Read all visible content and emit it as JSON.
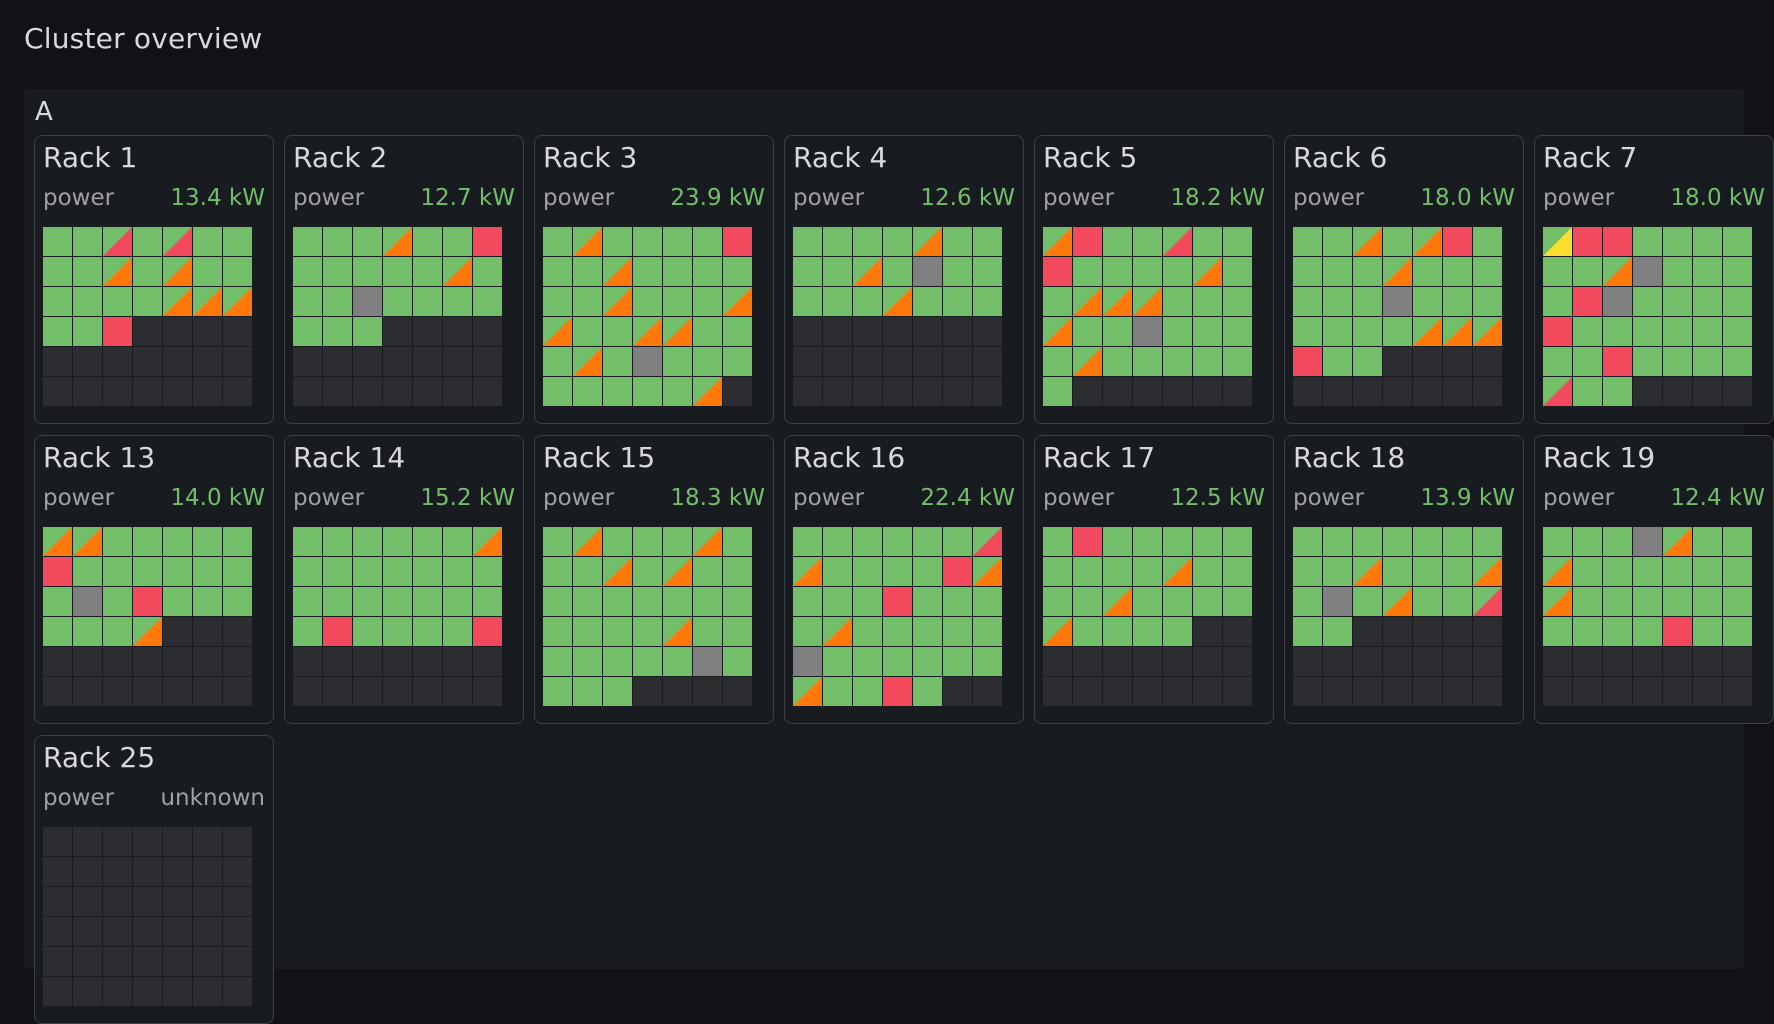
{
  "page_title": "Cluster overview",
  "group": {
    "label": "A",
    "colors": {
      "ok": "#73bf69",
      "warn": "#ff780a",
      "crit": "#f2495c",
      "minor": "#fade2a",
      "unknown": "#808080",
      "empty": "#2c2d31"
    },
    "racks": [
      {
        "name": "Rack 1",
        "metric_label": "power",
        "metric_value": "13.4 kW",
        "slots": [
          "g",
          "g",
          "gc",
          "g",
          "gc",
          "g",
          "g",
          "g",
          "g",
          "go",
          "g",
          "go",
          "g",
          "g",
          "g",
          "g",
          "g",
          "g",
          "go",
          "go",
          "go",
          "g",
          "g",
          "r",
          "e",
          "e",
          "e",
          "e",
          "e",
          "e",
          "e",
          "e",
          "e",
          "e",
          "e",
          "e",
          "e",
          "e",
          "e",
          "e",
          "e",
          "e"
        ]
      },
      {
        "name": "Rack 2",
        "metric_label": "power",
        "metric_value": "12.7 kW",
        "slots": [
          "g",
          "g",
          "g",
          "go",
          "g",
          "g",
          "r",
          "g",
          "g",
          "g",
          "g",
          "g",
          "go",
          "g",
          "g",
          "g",
          "x",
          "g",
          "g",
          "g",
          "g",
          "g",
          "g",
          "g",
          "e",
          "e",
          "e",
          "e",
          "e",
          "e",
          "e",
          "e",
          "e",
          "e",
          "e",
          "e",
          "e",
          "e",
          "e",
          "e",
          "e",
          "e"
        ]
      },
      {
        "name": "Rack 3",
        "metric_label": "power",
        "metric_value": "23.9 kW",
        "slots": [
          "g",
          "go",
          "g",
          "g",
          "g",
          "g",
          "r",
          "g",
          "g",
          "go",
          "g",
          "g",
          "g",
          "g",
          "g",
          "g",
          "go",
          "g",
          "g",
          "g",
          "go",
          "go",
          "g",
          "g",
          "go",
          "go",
          "g",
          "g",
          "g",
          "go",
          "g",
          "x",
          "g",
          "g",
          "g",
          "g",
          "g",
          "g",
          "g",
          "g",
          "go",
          "e"
        ]
      },
      {
        "name": "Rack 4",
        "metric_label": "power",
        "metric_value": "12.6 kW",
        "slots": [
          "g",
          "g",
          "g",
          "g",
          "go",
          "g",
          "g",
          "g",
          "g",
          "go",
          "g",
          "x",
          "g",
          "g",
          "g",
          "g",
          "g",
          "go",
          "g",
          "g",
          "g",
          "e",
          "e",
          "e",
          "e",
          "e",
          "e",
          "e",
          "e",
          "e",
          "e",
          "e",
          "e",
          "e",
          "e",
          "e",
          "e",
          "e",
          "e",
          "e",
          "e",
          "e"
        ]
      },
      {
        "name": "Rack 5",
        "metric_label": "power",
        "metric_value": "18.2 kW",
        "slots": [
          "go",
          "r",
          "g",
          "g",
          "gc",
          "g",
          "g",
          "r",
          "g",
          "g",
          "g",
          "g",
          "go",
          "g",
          "g",
          "go",
          "go",
          "go",
          "g",
          "g",
          "g",
          "go",
          "g",
          "g",
          "x",
          "g",
          "g",
          "g",
          "g",
          "go",
          "g",
          "g",
          "g",
          "g",
          "g",
          "g",
          "e",
          "e",
          "e",
          "e",
          "e",
          "e"
        ]
      },
      {
        "name": "Rack 6",
        "metric_label": "power",
        "metric_value": "18.0 kW",
        "slots": [
          "g",
          "g",
          "go",
          "g",
          "go",
          "r",
          "g",
          "g",
          "g",
          "g",
          "go",
          "g",
          "g",
          "g",
          "g",
          "g",
          "g",
          "x",
          "g",
          "g",
          "g",
          "g",
          "g",
          "g",
          "g",
          "go",
          "go",
          "go",
          "r",
          "g",
          "g",
          "e",
          "e",
          "e",
          "e",
          "e",
          "e",
          "e",
          "e",
          "e",
          "e",
          "e"
        ]
      },
      {
        "name": "Rack 7",
        "metric_label": "power",
        "metric_value": "18.0 kW",
        "slots": [
          "gy",
          "r",
          "r",
          "g",
          "g",
          "g",
          "g",
          "g",
          "g",
          "go",
          "x",
          "g",
          "g",
          "g",
          "g",
          "r",
          "x",
          "g",
          "g",
          "g",
          "g",
          "r",
          "g",
          "g",
          "g",
          "g",
          "g",
          "g",
          "g",
          "g",
          "r",
          "g",
          "g",
          "g",
          "g",
          "gc",
          "g",
          "g",
          "e",
          "e",
          "e",
          "e"
        ]
      },
      {
        "name": "Rack 13",
        "metric_label": "power",
        "metric_value": "14.0 kW",
        "slots": [
          "go",
          "go",
          "g",
          "g",
          "g",
          "g",
          "g",
          "r",
          "g",
          "g",
          "g",
          "g",
          "g",
          "g",
          "g",
          "x",
          "g",
          "r",
          "g",
          "g",
          "g",
          "g",
          "g",
          "g",
          "go",
          "e",
          "e",
          "e",
          "e",
          "e",
          "e",
          "e",
          "e",
          "e",
          "e",
          "e",
          "e",
          "e",
          "e",
          "e",
          "e",
          "e"
        ]
      },
      {
        "name": "Rack 14",
        "metric_label": "power",
        "metric_value": "15.2 kW",
        "slots": [
          "g",
          "g",
          "g",
          "g",
          "g",
          "g",
          "go",
          "g",
          "g",
          "g",
          "g",
          "g",
          "g",
          "g",
          "g",
          "g",
          "g",
          "g",
          "g",
          "g",
          "g",
          "g",
          "r",
          "g",
          "g",
          "g",
          "g",
          "r",
          "e",
          "e",
          "e",
          "e",
          "e",
          "e",
          "e",
          "e",
          "e",
          "e",
          "e",
          "e",
          "e",
          "e"
        ]
      },
      {
        "name": "Rack 15",
        "metric_label": "power",
        "metric_value": "18.3 kW",
        "slots": [
          "g",
          "go",
          "g",
          "g",
          "g",
          "go",
          "g",
          "g",
          "g",
          "go",
          "g",
          "go",
          "g",
          "g",
          "g",
          "g",
          "g",
          "g",
          "g",
          "g",
          "g",
          "g",
          "g",
          "g",
          "g",
          "go",
          "g",
          "g",
          "g",
          "g",
          "g",
          "g",
          "g",
          "x",
          "g",
          "g",
          "g",
          "g",
          "e",
          "e",
          "e",
          "e"
        ]
      },
      {
        "name": "Rack 16",
        "metric_label": "power",
        "metric_value": "22.4 kW",
        "slots": [
          "g",
          "g",
          "g",
          "g",
          "g",
          "g",
          "gc",
          "go",
          "g",
          "g",
          "g",
          "g",
          "r",
          "go",
          "g",
          "g",
          "g",
          "r",
          "g",
          "g",
          "g",
          "g",
          "go",
          "g",
          "g",
          "g",
          "g",
          "g",
          "x",
          "g",
          "g",
          "g",
          "g",
          "g",
          "g",
          "go",
          "g",
          "g",
          "r",
          "g",
          "e",
          "e"
        ]
      },
      {
        "name": "Rack 17",
        "metric_label": "power",
        "metric_value": "12.5 kW",
        "slots": [
          "g",
          "r",
          "g",
          "g",
          "g",
          "g",
          "g",
          "g",
          "g",
          "g",
          "g",
          "go",
          "g",
          "g",
          "g",
          "g",
          "go",
          "g",
          "g",
          "g",
          "g",
          "go",
          "g",
          "g",
          "g",
          "g",
          "e",
          "e",
          "e",
          "e",
          "e",
          "e",
          "e",
          "e",
          "e",
          "e",
          "e",
          "e",
          "e",
          "e",
          "e",
          "e"
        ]
      },
      {
        "name": "Rack 18",
        "metric_label": "power",
        "metric_value": "13.9 kW",
        "slots": [
          "g",
          "g",
          "g",
          "g",
          "g",
          "g",
          "g",
          "g",
          "g",
          "go",
          "g",
          "g",
          "g",
          "go",
          "g",
          "x",
          "g",
          "go",
          "g",
          "g",
          "gc",
          "g",
          "g",
          "e",
          "e",
          "e",
          "e",
          "e",
          "e",
          "e",
          "e",
          "e",
          "e",
          "e",
          "e",
          "e",
          "e",
          "e",
          "e",
          "e",
          "e",
          "e"
        ]
      },
      {
        "name": "Rack 19",
        "metric_label": "power",
        "metric_value": "12.4 kW",
        "slots": [
          "g",
          "g",
          "g",
          "x",
          "go",
          "g",
          "g",
          "go",
          "g",
          "g",
          "g",
          "g",
          "g",
          "g",
          "go",
          "g",
          "g",
          "g",
          "g",
          "g",
          "g",
          "g",
          "g",
          "g",
          "g",
          "r",
          "g",
          "g",
          "e",
          "e",
          "e",
          "e",
          "e",
          "e",
          "e",
          "e",
          "e",
          "e",
          "e",
          "e",
          "e",
          "e"
        ]
      },
      {
        "name": "Rack 25",
        "metric_label": "power",
        "metric_value": "unknown",
        "slots": [
          "e",
          "e",
          "e",
          "e",
          "e",
          "e",
          "e",
          "e",
          "e",
          "e",
          "e",
          "e",
          "e",
          "e",
          "e",
          "e",
          "e",
          "e",
          "e",
          "e",
          "e",
          "e",
          "e",
          "e",
          "e",
          "e",
          "e",
          "e",
          "e",
          "e",
          "e",
          "e",
          "e",
          "e",
          "e",
          "e",
          "e",
          "e",
          "e",
          "e",
          "e",
          "e"
        ]
      }
    ]
  }
}
